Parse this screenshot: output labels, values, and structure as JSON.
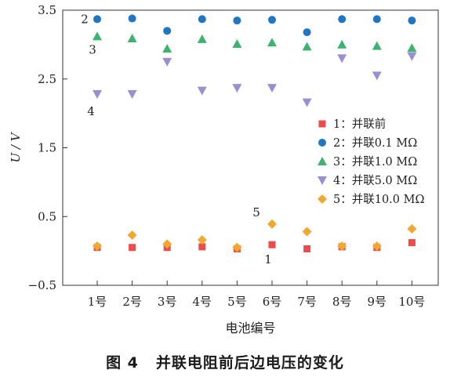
{
  "caption": {
    "figure_number": "图 4",
    "text": "并联电阻前后边电压的变化"
  },
  "chart_data": {
    "type": "scatter",
    "xlabel": "电池编号",
    "ylabel": "U / V",
    "ylim": [
      -0.5,
      3.5
    ],
    "yticks": [
      "3.5",
      "2.5",
      "1.5",
      "0.5",
      "−0.5"
    ],
    "ytick_values": [
      3.5,
      2.5,
      1.5,
      0.5,
      -0.5
    ],
    "categories": [
      "1号",
      "2号",
      "3号",
      "4号",
      "5号",
      "6号",
      "7号",
      "8号",
      "9号",
      "10号"
    ],
    "grid": false,
    "legend_position": "right-middle",
    "series": [
      {
        "id": "s1",
        "name": "1：并联前",
        "marker": "square",
        "color": "#ee4b4b",
        "values": [
          0.05,
          0.05,
          0.05,
          0.06,
          0.03,
          0.09,
          0.03,
          0.06,
          0.05,
          0.12
        ]
      },
      {
        "id": "s2",
        "name": "2：并联0.1 MΩ",
        "marker": "circle",
        "color": "#1f77c4",
        "values": [
          3.37,
          3.38,
          3.2,
          3.37,
          3.35,
          3.36,
          3.18,
          3.37,
          3.37,
          3.35
        ]
      },
      {
        "id": "s3",
        "name": "3：并联1.0 MΩ",
        "marker": "triangle-up",
        "color": "#3cb371",
        "values": [
          3.12,
          3.09,
          2.94,
          3.08,
          3.01,
          3.03,
          2.97,
          3.0,
          2.98,
          2.95
        ]
      },
      {
        "id": "s4",
        "name": "4：并联5.0 MΩ",
        "marker": "triangle-down",
        "color": "#9b8fd4",
        "values": [
          2.28,
          2.28,
          2.75,
          2.33,
          2.37,
          2.37,
          2.16,
          2.8,
          2.55,
          2.83
        ]
      },
      {
        "id": "s5",
        "name": "5：并联10.0 MΩ",
        "marker": "diamond",
        "color": "#f0a830",
        "values": [
          0.07,
          0.23,
          0.1,
          0.16,
          0.05,
          0.39,
          0.28,
          0.07,
          0.07,
          0.32
        ]
      }
    ],
    "annotations": [
      {
        "text": "2",
        "series": "s2"
      },
      {
        "text": "3",
        "series": "s3"
      },
      {
        "text": "4",
        "series": "s4"
      },
      {
        "text": "5",
        "series": "s5"
      },
      {
        "text": "1",
        "series": "s1"
      }
    ]
  }
}
